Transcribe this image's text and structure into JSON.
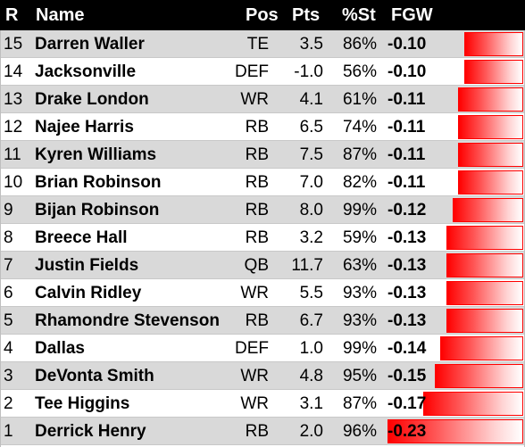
{
  "header": {
    "rank": "R",
    "name": "Name",
    "pos": "Pos",
    "pts": "Pts",
    "pst": "%St",
    "fgw": "FGW"
  },
  "rows": [
    {
      "rank": "15",
      "name": "Darren Waller",
      "pos": "TE",
      "pts": "3.5",
      "pst": "86%",
      "fgw": "-0.10",
      "value": -0.1
    },
    {
      "rank": "14",
      "name": "Jacksonville",
      "pos": "DEF",
      "pts": "-1.0",
      "pst": "56%",
      "fgw": "-0.10",
      "value": -0.1
    },
    {
      "rank": "13",
      "name": "Drake London",
      "pos": "WR",
      "pts": "4.1",
      "pst": "61%",
      "fgw": "-0.11",
      "value": -0.11
    },
    {
      "rank": "12",
      "name": "Najee Harris",
      "pos": "RB",
      "pts": "6.5",
      "pst": "74%",
      "fgw": "-0.11",
      "value": -0.11
    },
    {
      "rank": "11",
      "name": "Kyren Williams",
      "pos": "RB",
      "pts": "7.5",
      "pst": "87%",
      "fgw": "-0.11",
      "value": -0.11
    },
    {
      "rank": "10",
      "name": "Brian Robinson",
      "pos": "RB",
      "pts": "7.0",
      "pst": "82%",
      "fgw": "-0.11",
      "value": -0.11
    },
    {
      "rank": "9",
      "name": "Bijan Robinson",
      "pos": "RB",
      "pts": "8.0",
      "pst": "99%",
      "fgw": "-0.12",
      "value": -0.12
    },
    {
      "rank": "8",
      "name": "Breece Hall",
      "pos": "RB",
      "pts": "3.2",
      "pst": "59%",
      "fgw": "-0.13",
      "value": -0.13
    },
    {
      "rank": "7",
      "name": "Justin Fields",
      "pos": "QB",
      "pts": "11.7",
      "pst": "63%",
      "fgw": "-0.13",
      "value": -0.13
    },
    {
      "rank": "6",
      "name": "Calvin Ridley",
      "pos": "WR",
      "pts": "5.5",
      "pst": "93%",
      "fgw": "-0.13",
      "value": -0.13
    },
    {
      "rank": "5",
      "name": "Rhamondre Stevenson",
      "pos": "RB",
      "pts": "6.7",
      "pst": "93%",
      "fgw": "-0.13",
      "value": -0.13
    },
    {
      "rank": "4",
      "name": "Dallas",
      "pos": "DEF",
      "pts": "1.0",
      "pst": "99%",
      "fgw": "-0.14",
      "value": -0.14
    },
    {
      "rank": "3",
      "name": "DeVonta Smith",
      "pos": "WR",
      "pts": "4.8",
      "pst": "95%",
      "fgw": "-0.15",
      "value": -0.15
    },
    {
      "rank": "2",
      "name": "Tee Higgins",
      "pos": "WR",
      "pts": "3.1",
      "pst": "87%",
      "fgw": "-0.17",
      "value": -0.17
    },
    {
      "rank": "1",
      "name": "Derrick Henry",
      "pos": "RB",
      "pts": "2.0",
      "pst": "96%",
      "fgw": "-0.23",
      "value": -0.23
    }
  ],
  "colors": {
    "bar": "#ff0000",
    "shade": "#d9d9d9",
    "header": "#000000"
  }
}
